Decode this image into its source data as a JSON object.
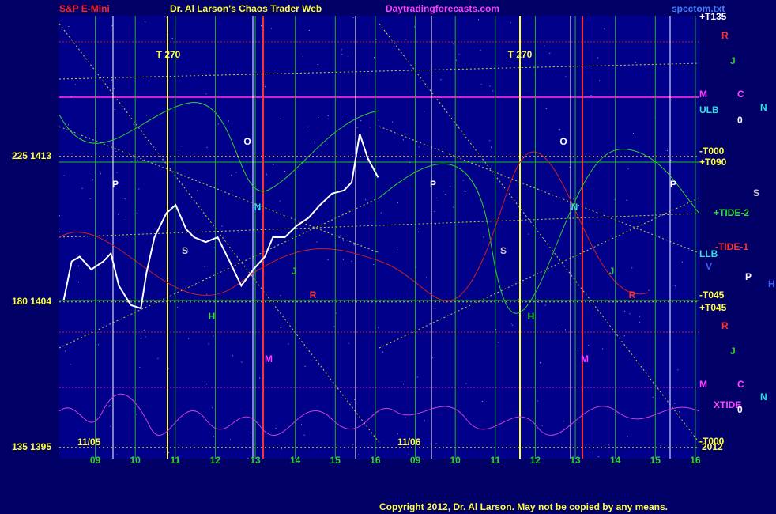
{
  "chart_data": {
    "type": "line",
    "title": "Dr. Al Larson's Chaos Trader Web",
    "header_left": "S&P E-Mini",
    "header_site": "Daytradingforecasts.com",
    "header_file": "spcctom.txt",
    "copyright": "Copyright 2012, Dr. Al Larson. May not be copied by any means.",
    "day_labels": [
      "11/05",
      "11/06"
    ],
    "xlim": [
      -0.9,
      15.1
    ],
    "xticks": [
      {
        "value": 0,
        "label": "09"
      },
      {
        "value": 1,
        "label": "10"
      },
      {
        "value": 2,
        "label": "11"
      },
      {
        "value": 3,
        "label": "12"
      },
      {
        "value": 4,
        "label": "13"
      },
      {
        "value": 5,
        "label": "14"
      },
      {
        "value": 6,
        "label": "15"
      },
      {
        "value": 7,
        "label": "16"
      },
      {
        "value": 8,
        "label": "09"
      },
      {
        "value": 9,
        "label": "10"
      },
      {
        "value": 10,
        "label": "11"
      },
      {
        "value": 11,
        "label": "12"
      },
      {
        "value": 12,
        "label": "13"
      },
      {
        "value": 13,
        "label": "14"
      },
      {
        "value": 14,
        "label": "15"
      },
      {
        "value": 15,
        "label": "16"
      }
    ],
    "ylim": [
      1394.3,
      1421.7
    ],
    "yticks": [
      {
        "value": 1413,
        "label": "225 1413"
      },
      {
        "value": 1404,
        "label": "180 1404"
      },
      {
        "value": 1395,
        "label": "135 1395"
      }
    ],
    "x": [
      -0.79,
      -0.59,
      -0.39,
      -0.1,
      0.2,
      0.39,
      0.59,
      0.89,
      1.14,
      1.28,
      1.48,
      1.78,
      2.01,
      2.27,
      2.47,
      2.76,
      3.06,
      3.36,
      3.65,
      3.95,
      4.24,
      4.44,
      4.74,
      5.03,
      5.33,
      5.62,
      5.92,
      6.22,
      6.41,
      6.61,
      6.81,
      7.07
    ],
    "series": [
      {
        "color": "#ffffff",
        "values": [
          1404.1,
          1406.5,
          1406.8,
          1406.0,
          1406.5,
          1407.0,
          1405.0,
          1403.8,
          1403.6,
          1405.8,
          1408.0,
          1409.5,
          1410.0,
          1408.5,
          1408.0,
          1407.7,
          1408.0,
          1406.5,
          1405.0,
          1406.0,
          1406.8,
          1408.0,
          1408.0,
          1408.7,
          1409.2,
          1410.0,
          1410.7,
          1410.9,
          1411.4,
          1414.4,
          1412.9,
          1411.7
        ]
      }
    ],
    "annotations": [
      "T   270",
      "T   270",
      "P",
      "P",
      "P",
      "O",
      "O",
      "N",
      "N",
      "S",
      "S",
      "R",
      "R",
      "M",
      "M",
      "H",
      "H",
      "J",
      "J"
    ],
    "right_labels": [
      "+T135",
      "R",
      "J",
      "M",
      "C",
      "N",
      "ULB",
      "0",
      "-T000",
      "+T090",
      "S",
      "+TIDE-2",
      "-TIDE-1",
      "LLB",
      "V",
      "P",
      "H",
      "-T045",
      "+T045",
      "R",
      "J",
      "M",
      "C",
      "N",
      "XTIDE",
      "0",
      "-T000",
      "2012"
    ]
  }
}
